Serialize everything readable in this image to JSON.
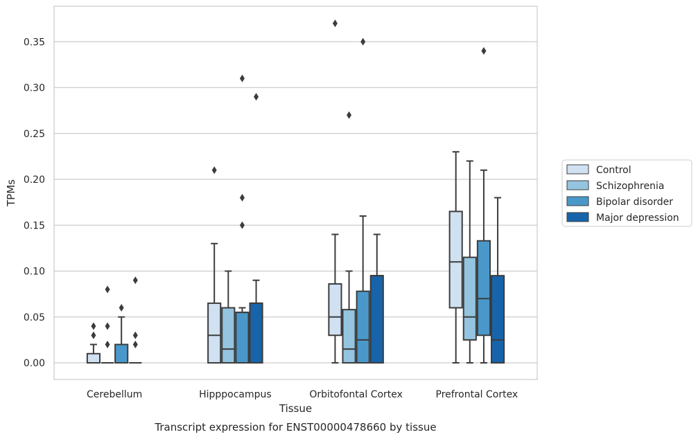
{
  "chart_data": {
    "type": "box",
    "xlabel": "Tissue",
    "ylabel": "TPMs",
    "caption": "Transcript expression for ENST00000478660 by tissue",
    "ylim": [
      -0.018,
      0.39
    ],
    "yticks": [
      0.0,
      0.05,
      0.1,
      0.15,
      0.2,
      0.25,
      0.3,
      0.35
    ],
    "ytick_labels": [
      "0.00",
      "0.05",
      "0.10",
      "0.15",
      "0.20",
      "0.25",
      "0.30",
      "0.35"
    ],
    "grid": "horizontal",
    "legend_position": "right",
    "categories": [
      "Cerebellum",
      "Hipppocampus",
      "Orbitofontal Cortex",
      "Prefrontal Cortex"
    ],
    "series": [
      {
        "name": "Control",
        "color": "#d0e1f2",
        "boxes": [
          {
            "q1": 0.0,
            "median": 0.0,
            "q3": 0.01,
            "whisker_low": 0.0,
            "whisker_high": 0.02,
            "outliers": [
              0.03,
              0.04
            ]
          },
          {
            "q1": 0.0,
            "median": 0.03,
            "q3": 0.065,
            "whisker_low": 0.0,
            "whisker_high": 0.13,
            "outliers": [
              0.21
            ]
          },
          {
            "q1": 0.03,
            "median": 0.05,
            "q3": 0.086,
            "whisker_low": 0.0,
            "whisker_high": 0.14,
            "outliers": [
              0.37
            ]
          },
          {
            "q1": 0.06,
            "median": 0.11,
            "q3": 0.165,
            "whisker_low": 0.0,
            "whisker_high": 0.23,
            "outliers": []
          }
        ]
      },
      {
        "name": "Schizophrenia",
        "color": "#94c4df",
        "boxes": [
          {
            "q1": 0.0,
            "median": 0.0,
            "q3": 0.0,
            "whisker_low": 0.0,
            "whisker_high": 0.0,
            "outliers": [
              0.02,
              0.04,
              0.08
            ]
          },
          {
            "q1": 0.0,
            "median": 0.015,
            "q3": 0.06,
            "whisker_low": 0.0,
            "whisker_high": 0.1,
            "outliers": []
          },
          {
            "q1": 0.0,
            "median": 0.015,
            "q3": 0.058,
            "whisker_low": 0.0,
            "whisker_high": 0.1,
            "outliers": [
              0.27
            ]
          },
          {
            "q1": 0.025,
            "median": 0.05,
            "q3": 0.115,
            "whisker_low": 0.0,
            "whisker_high": 0.22,
            "outliers": []
          }
        ]
      },
      {
        "name": "Bipolar disorder",
        "color": "#4a98c9",
        "boxes": [
          {
            "q1": 0.0,
            "median": 0.0,
            "q3": 0.02,
            "whisker_low": 0.0,
            "whisker_high": 0.05,
            "outliers": [
              0.06
            ]
          },
          {
            "q1": 0.0,
            "median": 0.055,
            "q3": 0.055,
            "whisker_low": 0.0,
            "whisker_high": 0.06,
            "outliers": [
              0.15,
              0.18,
              0.31
            ]
          },
          {
            "q1": 0.0,
            "median": 0.025,
            "q3": 0.078,
            "whisker_low": 0.0,
            "whisker_high": 0.16,
            "outliers": [
              0.35
            ]
          },
          {
            "q1": 0.03,
            "median": 0.07,
            "q3": 0.133,
            "whisker_low": 0.0,
            "whisker_high": 0.21,
            "outliers": [
              0.34
            ]
          }
        ]
      },
      {
        "name": "Major depression",
        "color": "#1764ab",
        "boxes": [
          {
            "q1": 0.0,
            "median": 0.0,
            "q3": 0.0,
            "whisker_low": 0.0,
            "whisker_high": 0.0,
            "outliers": [
              0.02,
              0.03,
              0.09
            ]
          },
          {
            "q1": 0.0,
            "median": 0.065,
            "q3": 0.065,
            "whisker_low": 0.0,
            "whisker_high": 0.09,
            "outliers": [
              0.29
            ]
          },
          {
            "q1": 0.0,
            "median": 0.095,
            "q3": 0.095,
            "whisker_low": 0.0,
            "whisker_high": 0.14,
            "outliers": []
          },
          {
            "q1": 0.0,
            "median": 0.025,
            "q3": 0.095,
            "whisker_low": 0.0,
            "whisker_high": 0.18,
            "outliers": []
          }
        ]
      }
    ]
  }
}
